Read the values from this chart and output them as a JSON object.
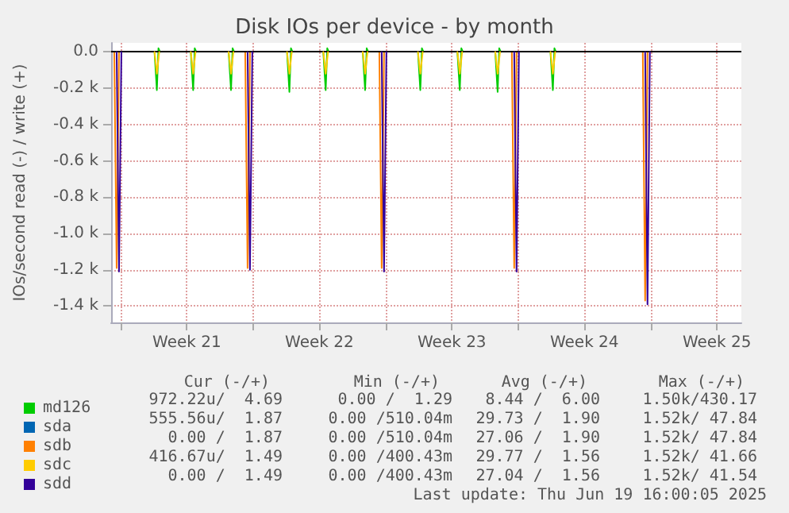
{
  "chart_data": {
    "type": "line",
    "title": "Disk IOs per device - by month",
    "ylabel": "IOs/second read (-) / write (+)",
    "xlim": [
      "2025-05-18T12:00",
      "2025-06-20T19:00"
    ],
    "xticks": [
      {
        "value": "2025-05-19T00:00",
        "label": null
      },
      {
        "value": "2025-05-22T12:00",
        "label": "Week 21"
      },
      {
        "value": "2025-05-26T00:00",
        "label": null
      },
      {
        "value": "2025-05-29T12:00",
        "label": "Week 22"
      },
      {
        "value": "2025-06-02T00:00",
        "label": null
      },
      {
        "value": "2025-06-05T12:00",
        "label": "Week 23"
      },
      {
        "value": "2025-06-09T00:00",
        "label": null
      },
      {
        "value": "2025-06-12T12:00",
        "label": "Week 24"
      },
      {
        "value": "2025-06-16T00:00",
        "label": null
      },
      {
        "value": "2025-06-19T12:00",
        "label": "Week 25"
      }
    ],
    "ylim": [
      -1490,
      50
    ],
    "yticks": [
      {
        "value": -1400,
        "label": "-1.4 k"
      },
      {
        "value": -1200,
        "label": "-1.2 k"
      },
      {
        "value": -1000,
        "label": "-1.0 k"
      },
      {
        "value": -800,
        "label": "-0.8 k"
      },
      {
        "value": -600,
        "label": "-0.6 k"
      },
      {
        "value": -400,
        "label": "-0.4 k"
      },
      {
        "value": -200,
        "label": "-0.2 k"
      },
      {
        "value": 0,
        "label": "0.0"
      }
    ],
    "grid": true,
    "legend": "bottom left",
    "line_style": "solid",
    "ref_lines": [
      {
        "axis": "y",
        "value": 0,
        "color": "#000000"
      }
    ],
    "series": [
      {
        "name": "md126",
        "color": "#00cc00",
        "x": [
          "2025-05-20T19:00",
          "2025-05-20T22:00",
          "2025-05-21T00:00",
          "2025-05-21T02:00",
          "2025-05-21T04:00",
          "2025-05-22T17:00",
          "2025-05-22T20:00",
          "2025-05-22T22:00",
          "2025-05-23T00:00",
          "2025-05-23T02:00",
          "2025-05-24T17:00",
          "2025-05-24T20:00",
          "2025-05-24T22:00",
          "2025-05-25T00:00",
          "2025-05-25T02:00",
          "2025-05-27T19:00",
          "2025-05-27T22:00",
          "2025-05-28T00:00",
          "2025-05-28T02:00",
          "2025-05-28T04:00",
          "2025-05-29T17:00",
          "2025-05-29T20:00",
          "2025-05-29T22:00",
          "2025-05-30T00:00",
          "2025-05-30T02:00",
          "2025-05-31T19:00",
          "2025-05-31T22:00",
          "2025-06-01T00:00",
          "2025-06-01T02:00",
          "2025-06-01T04:00",
          "2025-06-03T17:00",
          "2025-06-03T20:00",
          "2025-06-03T22:00",
          "2025-06-04T00:00",
          "2025-06-04T02:00",
          "2025-06-05T19:00",
          "2025-06-05T22:00",
          "2025-06-06T00:00",
          "2025-06-06T02:00",
          "2025-06-06T04:00",
          "2025-06-07T19:00",
          "2025-06-07T22:00",
          "2025-06-08T00:00",
          "2025-06-08T02:00",
          "2025-06-08T04:00",
          "2025-06-10T17:00",
          "2025-06-10T20:00",
          "2025-06-10T22:00",
          "2025-06-11T00:00"
        ],
        "values": [
          0,
          -210,
          20,
          0,
          null,
          0,
          -210,
          20,
          0,
          null,
          0,
          -210,
          20,
          0,
          null,
          0,
          -220,
          20,
          0,
          null,
          0,
          -210,
          20,
          0,
          null,
          0,
          -210,
          20,
          0,
          null,
          0,
          -210,
          20,
          0,
          null,
          0,
          -210,
          20,
          0,
          null,
          0,
          -220,
          20,
          0,
          null,
          0,
          -210,
          20,
          0
        ]
      },
      {
        "name": "sda",
        "color": "#0066b3"
      },
      {
        "name": "sdb",
        "color": "#ff8000",
        "x": [
          "2025-05-18T16:00",
          "2025-05-18T19:00",
          "2025-05-18T22:00",
          "2025-05-19T00:00",
          "2025-05-25T14:00",
          "2025-05-25T17:00",
          "2025-05-25T20:00",
          "2025-05-25T22:00",
          "2025-06-01T16:00",
          "2025-06-01T19:00",
          "2025-06-01T22:00",
          "2025-06-02T00:00",
          "2025-06-08T16:00",
          "2025-06-08T19:00",
          "2025-06-08T22:00",
          "2025-06-09T00:00",
          "2025-06-15T14:00",
          "2025-06-15T17:00",
          "2025-06-15T20:00"
        ],
        "values": [
          0,
          -1190,
          0,
          null,
          0,
          -1190,
          0,
          null,
          0,
          -1190,
          0,
          null,
          0,
          -1190,
          0,
          null,
          0,
          -1370,
          0
        ]
      },
      {
        "name": "sdc",
        "color": "#ffcc00",
        "x": [
          "2025-05-20T19:00",
          "2025-05-20T22:00",
          "2025-05-21T01:00",
          "2025-05-21T03:00",
          "2025-05-22T17:00",
          "2025-05-22T20:00",
          "2025-05-22T23:00",
          "2025-05-23T01:00",
          "2025-05-24T17:00",
          "2025-05-24T20:00",
          "2025-05-24T23:00",
          "2025-05-25T01:00",
          "2025-05-27T19:00",
          "2025-05-27T22:00",
          "2025-05-28T01:00",
          "2025-05-28T03:00",
          "2025-05-29T17:00",
          "2025-05-29T20:00",
          "2025-05-29T23:00",
          "2025-05-30T01:00",
          "2025-05-31T19:00",
          "2025-05-31T22:00",
          "2025-06-01T01:00",
          "2025-06-01T03:00",
          "2025-06-03T17:00",
          "2025-06-03T20:00",
          "2025-06-03T23:00",
          "2025-06-04T01:00",
          "2025-06-05T19:00",
          "2025-06-05T22:00",
          "2025-06-06T01:00",
          "2025-06-06T03:00",
          "2025-06-07T19:00",
          "2025-06-07T22:00",
          "2025-06-08T01:00",
          "2025-06-08T03:00",
          "2025-06-10T17:00",
          "2025-06-10T20:00",
          "2025-06-10T23:00"
        ],
        "values": [
          0,
          -120,
          0,
          null,
          0,
          -120,
          0,
          null,
          0,
          -120,
          0,
          null,
          0,
          -120,
          0,
          null,
          0,
          -120,
          0,
          null,
          0,
          -120,
          0,
          null,
          0,
          -120,
          0,
          null,
          0,
          -120,
          0,
          null,
          0,
          -120,
          0,
          null,
          0,
          -120,
          0
        ]
      },
      {
        "name": "sdd",
        "color": "#330099",
        "x": [
          "2025-05-18T19:00",
          "2025-05-18T22:00",
          "2025-05-19T01:00",
          "2025-05-19T03:00",
          "2025-05-25T17:00",
          "2025-05-25T20:00",
          "2025-05-25T23:00",
          "2025-05-26T01:00",
          "2025-06-01T19:00",
          "2025-06-01T22:00",
          "2025-06-02T01:00",
          "2025-06-02T03:00",
          "2025-06-08T19:00",
          "2025-06-08T22:00",
          "2025-06-09T01:00",
          "2025-06-09T03:00",
          "2025-06-15T17:00",
          "2025-06-15T20:00",
          "2025-06-15T23:00"
        ],
        "values": [
          0,
          -1210,
          0,
          null,
          0,
          -1200,
          0,
          null,
          0,
          -1210,
          0,
          null,
          0,
          -1210,
          0,
          null,
          0,
          -1390,
          0
        ]
      }
    ],
    "annotations": [
      "Cur (-/+)",
      "Min (-/+)",
      "Avg (-/+)",
      "Max (-/+)",
      "972.22u/  4.69",
      "0.00 /  1.29",
      "8.44 /  6.00",
      "1.50k/430.17",
      "555.56u/  1.87",
      "0.00 /510.04m",
      "29.73 /  1.90",
      "1.52k/ 47.84",
      "0.00 /  1.87",
      "0.00 /510.04m",
      "27.06 /  1.90",
      "1.52k/ 47.84",
      "416.67u/  1.49",
      "0.00 /400.43m",
      "29.77 /  1.56",
      "1.52k/ 41.66",
      "0.00 /  1.49",
      "0.00 /400.43m",
      "27.04 /  1.56",
      "1.52k/ 41.54",
      "Last update: Thu Jun 19 16:00:05 2025"
    ]
  }
}
